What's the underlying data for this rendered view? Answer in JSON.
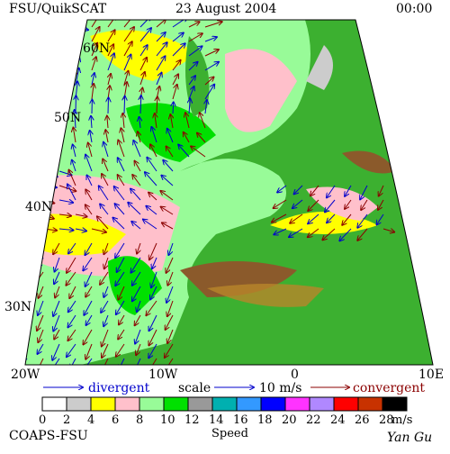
{
  "header": {
    "left": "FSU/QuikSCAT",
    "center": "23 August 2004",
    "right": "00:00"
  },
  "lat_labels": [
    "60N",
    "50N",
    "40N",
    "30N"
  ],
  "lon_labels": [
    "20W",
    "10W",
    "0",
    "10E"
  ],
  "legend": {
    "divergent": "divergent",
    "scale": "scale",
    "scale_value": "10 m/s",
    "convergent": "convergent"
  },
  "colorbar": {
    "labels": [
      "0",
      "2",
      "4",
      "6",
      "8",
      "10",
      "12",
      "14",
      "16",
      "18",
      "20",
      "22",
      "24",
      "26",
      "28"
    ],
    "colors": [
      "#ffffff",
      "#cccccc",
      "#ffff00",
      "#ffc0cb",
      "#98fb98",
      "#00e000",
      "#999999",
      "#00b0b0",
      "#3399ff",
      "#0000ff",
      "#ff33ff",
      "#b088ff",
      "#ff0000",
      "#c83200",
      "#000000"
    ],
    "unit": "m/s",
    "title": "Speed"
  },
  "footer": {
    "left": "COAPS-FSU",
    "right": "Yan Gu"
  }
}
